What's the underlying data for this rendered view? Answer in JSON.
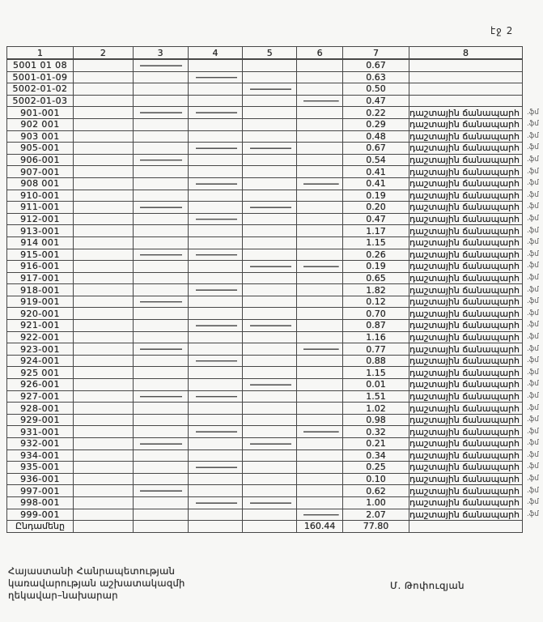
{
  "page_label": "էջ 2",
  "table": {
    "column_headers": [
      "1",
      "2",
      "3",
      "4",
      "5",
      "6",
      "7",
      "8"
    ],
    "road_label": "դաշտային ճանապարհ",
    "margin_mark": ".ֆմ",
    "rows": [
      [
        "5001 01 08",
        "0.67",
        0
      ],
      [
        "5001-01-09",
        "0.63",
        0
      ],
      [
        "5002-01-02",
        "0.50",
        0
      ],
      [
        "5002-01-03",
        "0.47",
        0
      ],
      [
        "901-001",
        "0.22",
        1
      ],
      [
        "902 001",
        "0.29",
        1
      ],
      [
        "903 001",
        "0.48",
        1
      ],
      [
        "905-001",
        "0.67",
        1
      ],
      [
        "906-001",
        "0.54",
        1
      ],
      [
        "907-001",
        "0.41",
        1
      ],
      [
        "908 001",
        "0.41",
        1
      ],
      [
        "910-001",
        "0.19",
        1
      ],
      [
        "911-001",
        "0.20",
        1
      ],
      [
        "912-001",
        "0.47",
        1
      ],
      [
        "913-001",
        "1.17",
        1
      ],
      [
        "914 001",
        "1.15",
        1
      ],
      [
        "915-001",
        "0.26",
        1
      ],
      [
        "916-001",
        "0.19",
        1
      ],
      [
        "917-001",
        "0.65",
        1
      ],
      [
        "918-001",
        "1.82",
        1
      ],
      [
        "919-001",
        "0.12",
        1
      ],
      [
        "920-001",
        "0.70",
        1
      ],
      [
        "921-001",
        "0.87",
        1
      ],
      [
        "922-001",
        "1.16",
        1
      ],
      [
        "923-001",
        "0.77",
        1
      ],
      [
        "924-001",
        "0.88",
        1
      ],
      [
        "925 001",
        "1.15",
        1
      ],
      [
        "926-001",
        "0.01",
        1
      ],
      [
        "927-001",
        "1.51",
        1
      ],
      [
        "928-001",
        "1.02",
        1
      ],
      [
        "929-001",
        "0.98",
        1
      ],
      [
        "931-001",
        "0.32",
        1
      ],
      [
        "932-001",
        "0.21",
        1
      ],
      [
        "934-001",
        "0.34",
        1
      ],
      [
        "935-001",
        "0.25",
        1
      ],
      [
        "936-001",
        "0.10",
        1
      ],
      [
        "997-001",
        "0.62",
        1
      ],
      [
        "998-001",
        "1.00",
        1
      ],
      [
        "999-001",
        "2.07",
        1
      ]
    ],
    "total_row": {
      "label": "Ընդամենը",
      "col6": "160.44",
      "col7": "77.80"
    }
  },
  "footer": {
    "line1": "Հայաստանի Հանրապետության",
    "line2": "կառավարության աշխատակազմի",
    "line3": "ղեկավար–նախարար",
    "signature": "Մ. Թոփուզյան"
  }
}
